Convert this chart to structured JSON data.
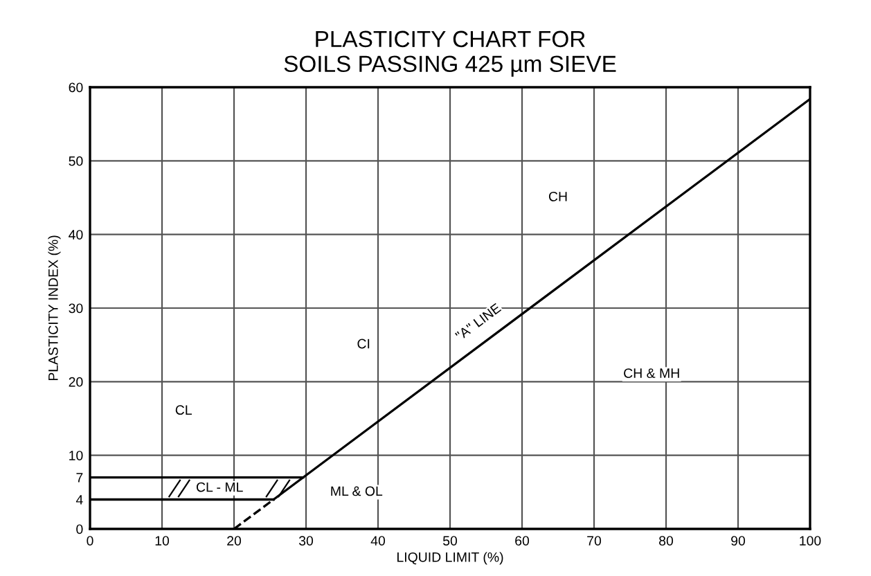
{
  "chart_data": {
    "type": "line",
    "title": "PLASTICITY CHART FOR\nSOILS PASSING 425 µm SIEVE",
    "xlabel": "LIQUID LIMIT (%)",
    "ylabel": "PLASTICITY INDEX (%)",
    "series": [
      {
        "color": "#000000",
        "x": [
          25.5,
          100
        ],
        "values": [
          4,
          58.4
        ],
        "line_style": "solid"
      },
      {
        "color": "#000000",
        "x": [
          20,
          25.5
        ],
        "values": [
          0,
          4
        ],
        "line_style": "dashed"
      },
      {
        "color": "#000000",
        "x": [
          0,
          25.5
        ],
        "values": [
          4,
          4
        ],
        "line_style": "solid"
      },
      {
        "color": "#000000",
        "x": [
          0,
          29.6
        ],
        "values": [
          7,
          7
        ],
        "line_style": "solid"
      }
    ],
    "xlim": [
      0,
      100
    ],
    "xticks": [
      0,
      10,
      20,
      30,
      40,
      50,
      60,
      70,
      80,
      90,
      100
    ],
    "ylim": [
      0,
      60
    ],
    "yticks": [
      0,
      4,
      7,
      10,
      20,
      30,
      40,
      50,
      60
    ],
    "grid": "x",
    "marker": "none",
    "ref_lines": [
      {
        "axis": "y",
        "value": 10
      },
      {
        "axis": "y",
        "value": 20
      },
      {
        "axis": "y",
        "value": 30
      },
      {
        "axis": "y",
        "value": 40
      },
      {
        "axis": "y",
        "value": 50
      }
    ],
    "annotations": [
      {
        "text": "CL",
        "x": 13,
        "y": 16
      },
      "CL - ML",
      "ML & OL",
      {
        "text": "CI",
        "x": 38,
        "y": 25
      },
      {
        "text": "CH",
        "x": 65,
        "y": 45
      },
      "CH & MH",
      {
        "text": "\"A\" LINE",
        "x": 54,
        "y": 28
      }
    ]
  }
}
